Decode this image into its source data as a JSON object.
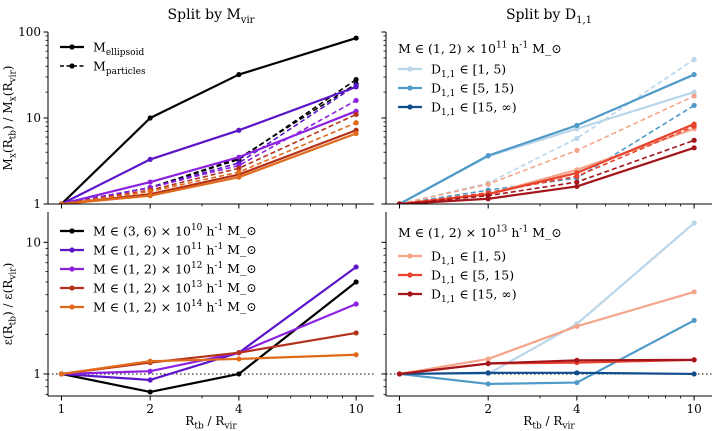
{
  "figure": {
    "col_titles": [
      "Split by M_vir",
      "Split by D_1,1"
    ],
    "xlabel": "R_tb / R_vir",
    "ylabel_top": "M_x(R_tb) / M_x(R_vir)",
    "ylabel_bottom": "ε(R_tb) / ε(R_vir)"
  },
  "chart_data": [
    {
      "id": "top-left",
      "type": "line",
      "x": [
        1,
        2,
        4,
        10
      ],
      "xscale": "log",
      "yscale": "log",
      "xlim": [
        0.9,
        11.5
      ],
      "ylim": [
        1,
        100
      ],
      "xticks": [
        1,
        2,
        4,
        10
      ],
      "yticks": [
        1,
        10,
        100
      ],
      "title": "Split by M_vir",
      "ylabel": "M_x(R_tb) / M_x(R_vir)",
      "xlabel": "",
      "legend": [
        {
          "label": "M_ellipsoid",
          "color": "#000000",
          "dash": "solid"
        },
        {
          "label": "M_particles",
          "color": "#000000",
          "dash": "dashed"
        }
      ],
      "series": [
        {
          "name": "M_ellipsoid, M ∈ (3,6)×10^10",
          "color": "#000000",
          "dash": "solid",
          "width": 2.2,
          "values": [
            1,
            10,
            32,
            85
          ]
        },
        {
          "name": "M_particles, M ∈ (3,6)×10^10",
          "color": "#000000",
          "dash": "dashed",
          "width": 1.6,
          "values": [
            1,
            1.55,
            3.3,
            28
          ]
        },
        {
          "name": "M_particles, M ∈ (3,6)×10^10 (b)",
          "color": "#000000",
          "dash": "dashed",
          "width": 1.6,
          "values": [
            1,
            1.55,
            3.4,
            25
          ]
        },
        {
          "name": "M_ellipsoid, M ∈ (1,2)×10^11",
          "color": "#5a16c9",
          "dash": "solid",
          "width": 2.2,
          "values": [
            1,
            3.3,
            7.2,
            23
          ]
        },
        {
          "name": "M_particles, M ∈ (1,2)×10^11",
          "color": "#5a16c9",
          "dash": "dashed",
          "width": 1.6,
          "values": [
            1,
            1.55,
            3.0,
            24
          ]
        },
        {
          "name": "M_ellipsoid, M ∈ (1,2)×10^12",
          "color": "#8c22e0",
          "dash": "solid",
          "width": 2.2,
          "values": [
            1,
            1.8,
            3.5,
            12
          ]
        },
        {
          "name": "M_particles, M ∈ (1,2)×10^12",
          "color": "#8c22e0",
          "dash": "dashed",
          "width": 1.6,
          "values": [
            1,
            1.55,
            2.8,
            16
          ]
        },
        {
          "name": "M_ellipsoid, M ∈ (1,2)×10^13",
          "color": "#b5321a",
          "dash": "solid",
          "width": 2.2,
          "values": [
            1,
            1.3,
            2.2,
            7.2
          ]
        },
        {
          "name": "M_particles, M ∈ (1,2)×10^13",
          "color": "#b5321a",
          "dash": "dashed",
          "width": 1.6,
          "values": [
            1,
            1.45,
            2.6,
            11
          ]
        },
        {
          "name": "M_ellipsoid, M ∈ (1,2)×10^14",
          "color": "#e06a1a",
          "dash": "solid",
          "width": 2.2,
          "values": [
            1,
            1.25,
            2.05,
            6.6
          ]
        },
        {
          "name": "M_particles, M ∈ (1,2)×10^14",
          "color": "#e06a1a",
          "dash": "dashed",
          "width": 1.6,
          "values": [
            1,
            1.4,
            2.35,
            8.8
          ]
        }
      ]
    },
    {
      "id": "top-right",
      "type": "line",
      "x": [
        1,
        2,
        4,
        10
      ],
      "xscale": "log",
      "yscale": "log",
      "xlim": [
        0.9,
        11.5
      ],
      "ylim": [
        1,
        100
      ],
      "xticks": [
        1,
        2,
        4,
        10
      ],
      "yticks": [
        1,
        10,
        100
      ],
      "title": "Split by D_1,1",
      "annotation": "M ∈ (1, 2) × 10^11 h^-1 M_⊙",
      "legend": [
        {
          "label": "D_1,1 ∈ [1, 5)",
          "color": "#b9d6ea",
          "dash": "solid"
        },
        {
          "label": "D_1,1 ∈ [5, 15)",
          "color": "#4f9ac9",
          "dash": "solid"
        },
        {
          "label": "D_1,1 ∈ [15, ∞)",
          "color": "#0f4d8c",
          "dash": "solid"
        }
      ],
      "series": [
        {
          "name": "Blue [1,5) solid",
          "color": "#b9d6ea",
          "dash": "solid",
          "width": 2.2,
          "values": [
            1,
            3.6,
            7.5,
            20
          ]
        },
        {
          "name": "Blue [1,5) dashed",
          "color": "#b9d6ea",
          "dash": "dashed",
          "width": 1.6,
          "values": [
            1,
            1.75,
            5.8,
            48
          ]
        },
        {
          "name": "Blue [5,15) solid",
          "color": "#4f9ac9",
          "dash": "solid",
          "width": 2.2,
          "values": [
            1,
            3.65,
            8.2,
            32
          ]
        },
        {
          "name": "Blue [5,15) dashed",
          "color": "#4f9ac9",
          "dash": "dashed",
          "width": 1.6,
          "values": [
            1,
            1.45,
            2.0,
            14
          ]
        },
        {
          "name": "Red [1,5) solid",
          "color": "#f4a58a",
          "dash": "solid",
          "width": 2.2,
          "values": [
            1,
            1.3,
            2.5,
            7.5
          ]
        },
        {
          "name": "Red [1,5) dashed",
          "color": "#f4a58a",
          "dash": "dashed",
          "width": 1.6,
          "values": [
            1,
            1.7,
            4.2,
            18
          ]
        },
        {
          "name": "Red [5,15) solid",
          "color": "#e8432d",
          "dash": "solid",
          "width": 2.2,
          "values": [
            1,
            1.3,
            2.3,
            8.5
          ]
        },
        {
          "name": "Red [5,15) dashed",
          "color": "#e8432d",
          "dash": "dashed",
          "width": 1.6,
          "values": [
            1,
            1.35,
            2.1,
            8.0
          ]
        },
        {
          "name": "Red [15,∞) solid",
          "color": "#a3151b",
          "dash": "solid",
          "width": 2.2,
          "values": [
            1,
            1.15,
            1.6,
            4.5
          ]
        },
        {
          "name": "Red [15,∞) dashed",
          "color": "#a3151b",
          "dash": "dashed",
          "width": 1.6,
          "values": [
            1,
            1.25,
            1.8,
            5.5
          ]
        }
      ]
    },
    {
      "id": "bottom-left",
      "type": "line",
      "x": [
        1,
        2,
        4,
        10
      ],
      "xscale": "log",
      "yscale": "log",
      "xlim": [
        0.9,
        11.5
      ],
      "ylim": [
        0.68,
        17
      ],
      "xticks": [
        1,
        2,
        4,
        10
      ],
      "yticks": [
        1,
        10
      ],
      "xlabel": "R_tb / R_vir",
      "ylabel": "ε(R_tb) / ε(R_vir)",
      "reference_line": 1,
      "legend": [
        {
          "label": "M ∈ (3, 6) × 10^10 h^-1 M_⊙",
          "color": "#000000",
          "dash": "solid"
        },
        {
          "label": "M ∈ (1, 2) × 10^11 h^-1 M_⊙",
          "color": "#5a16c9",
          "dash": "solid"
        },
        {
          "label": "M ∈ (1, 2) × 10^12 h^-1 M_⊙",
          "color": "#8c22e0",
          "dash": "solid"
        },
        {
          "label": "M ∈ (1, 2) × 10^13 h^-1 M_⊙",
          "color": "#b5321a",
          "dash": "solid"
        },
        {
          "label": "M ∈ (1, 2) × 10^14 h^-1 M_⊙",
          "color": "#e06a1a",
          "dash": "solid"
        }
      ],
      "series": [
        {
          "name": "M ∈ (3,6)×10^10",
          "color": "#000000",
          "dash": "solid",
          "width": 2.2,
          "values": [
            1,
            0.73,
            1.0,
            5.0
          ]
        },
        {
          "name": "M ∈ (1,2)×10^11",
          "color": "#5a16c9",
          "dash": "solid",
          "width": 2.2,
          "values": [
            1,
            0.9,
            1.45,
            6.5
          ]
        },
        {
          "name": "M ∈ (1,2)×10^12",
          "color": "#8c22e0",
          "dash": "solid",
          "width": 2.2,
          "values": [
            1,
            1.05,
            1.45,
            3.4
          ]
        },
        {
          "name": "M ∈ (1,2)×10^13",
          "color": "#b5321a",
          "dash": "solid",
          "width": 2.2,
          "values": [
            1,
            1.22,
            1.45,
            2.05
          ]
        },
        {
          "name": "M ∈ (1,2)×10^14",
          "color": "#e06a1a",
          "dash": "solid",
          "width": 2.2,
          "values": [
            1,
            1.25,
            1.3,
            1.4
          ]
        }
      ]
    },
    {
      "id": "bottom-right",
      "type": "line",
      "x": [
        1,
        2,
        4,
        10
      ],
      "xscale": "log",
      "yscale": "log",
      "xlim": [
        0.9,
        11.5
      ],
      "ylim": [
        0.68,
        17
      ],
      "xticks": [
        1,
        2,
        4,
        10
      ],
      "yticks": [
        1,
        10
      ],
      "xlabel": "R_tb / R_vir",
      "reference_line": 1,
      "annotation": "M ∈ (1, 2) × 10^13 h^-1 M_⊙",
      "legend": [
        {
          "label": "D_1,1 ∈ [1, 5)",
          "color": "#f4a58a",
          "dash": "solid"
        },
        {
          "label": "D_1,1 ∈ [5, 15)",
          "color": "#e8432d",
          "dash": "solid"
        },
        {
          "label": "D_1,1 ∈ [15, ∞)",
          "color": "#a3151b",
          "dash": "solid"
        }
      ],
      "series": [
        {
          "name": "Blue [1,5)",
          "color": "#b9d6ea",
          "dash": "solid",
          "width": 2.2,
          "values": [
            1,
            1.0,
            2.4,
            14
          ]
        },
        {
          "name": "Blue [5,15)",
          "color": "#4f9ac9",
          "dash": "solid",
          "width": 2.2,
          "values": [
            1,
            0.84,
            0.86,
            2.55
          ]
        },
        {
          "name": "Blue [15,∞)",
          "color": "#0f4d8c",
          "dash": "solid",
          "width": 2.2,
          "values": [
            1,
            1.02,
            1.02,
            1.0
          ]
        },
        {
          "name": "Red [1,5)",
          "color": "#f4a58a",
          "dash": "solid",
          "width": 2.2,
          "values": [
            1,
            1.3,
            2.3,
            4.2
          ]
        },
        {
          "name": "Red [5,15)",
          "color": "#e8432d",
          "dash": "solid",
          "width": 2.2,
          "values": [
            1,
            1.2,
            1.22,
            1.28
          ]
        },
        {
          "name": "Red [15,∞)",
          "color": "#a3151b",
          "dash": "solid",
          "width": 2.2,
          "values": [
            1,
            1.2,
            1.27,
            1.28
          ]
        }
      ]
    }
  ]
}
